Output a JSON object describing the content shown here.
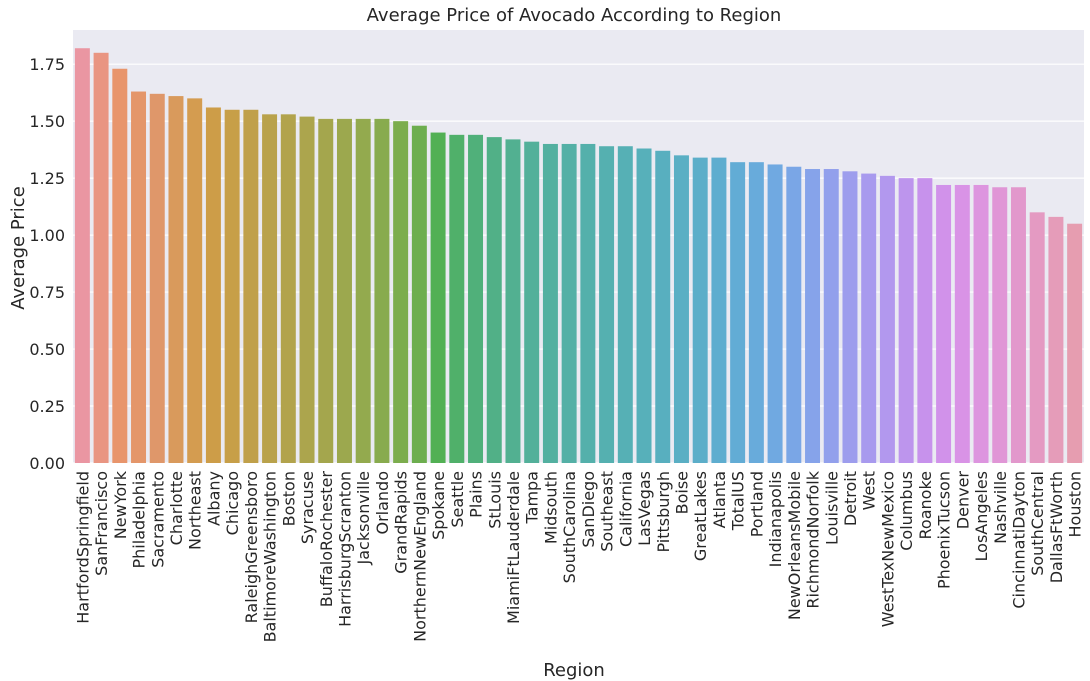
{
  "chart_data": {
    "type": "bar",
    "title": "Average Price of Avocado According to Region",
    "xlabel": "Region",
    "ylabel": "Average Price",
    "ylim": [
      0,
      1.9
    ],
    "yticks": [
      "0.00",
      "0.25",
      "0.50",
      "0.75",
      "1.00",
      "1.25",
      "1.50",
      "1.75"
    ],
    "grid": true,
    "background": "#eaeaf2",
    "gridColor": "#ffffff",
    "categories": [
      "HartfordSpringfield",
      "SanFrancisco",
      "NewYork",
      "Philadelphia",
      "Sacramento",
      "Charlotte",
      "Northeast",
      "Albany",
      "Chicago",
      "RaleighGreensboro",
      "BaltimoreWashington",
      "Boston",
      "Syracuse",
      "BuffaloRochester",
      "HarrisburgScranton",
      "Jacksonville",
      "Orlando",
      "GrandRapids",
      "NorthernNewEngland",
      "Spokane",
      "Seattle",
      "Plains",
      "StLouis",
      "MiamiFtLauderdale",
      "Tampa",
      "Midsouth",
      "SouthCarolina",
      "SanDiego",
      "Southeast",
      "California",
      "LasVegas",
      "Pittsburgh",
      "Boise",
      "GreatLakes",
      "Atlanta",
      "TotalUS",
      "Portland",
      "Indianapolis",
      "NewOrleansMobile",
      "RichmondNorfolk",
      "Louisville",
      "Detroit",
      "West",
      "WestTexNewMexico",
      "Columbus",
      "Roanoke",
      "PhoenixTucson",
      "Denver",
      "LosAngeles",
      "Nashville",
      "CincinnatiDayton",
      "SouthCentral",
      "DallasFtWorth",
      "Houston"
    ],
    "values": [
      1.82,
      1.8,
      1.73,
      1.63,
      1.62,
      1.61,
      1.6,
      1.56,
      1.55,
      1.55,
      1.53,
      1.53,
      1.52,
      1.51,
      1.51,
      1.51,
      1.51,
      1.5,
      1.48,
      1.45,
      1.44,
      1.44,
      1.43,
      1.42,
      1.41,
      1.4,
      1.4,
      1.4,
      1.39,
      1.39,
      1.38,
      1.37,
      1.35,
      1.34,
      1.34,
      1.32,
      1.32,
      1.31,
      1.3,
      1.29,
      1.29,
      1.28,
      1.27,
      1.26,
      1.25,
      1.25,
      1.22,
      1.22,
      1.22,
      1.21,
      1.21,
      1.1,
      1.08,
      1.05
    ],
    "colors": [
      "#ea96a2",
      "#e99582",
      "#e8956c",
      "#e4966a",
      "#df976a",
      "#d99a5c",
      "#d49c50",
      "#cd9d48",
      "#c79f48",
      "#c0a04a",
      "#b9a24b",
      "#b2a34c",
      "#aca54d",
      "#a4a64d",
      "#9ca84e",
      "#93aa4e",
      "#88ab4e",
      "#7cad4e",
      "#6dae4f",
      "#52b054",
      "#50b06a",
      "#50b07a",
      "#51b087",
      "#52b091",
      "#53b09a",
      "#53b0a0",
      "#54b0a6",
      "#54b0ab",
      "#55b0b0",
      "#56b0b5",
      "#57b0ba",
      "#58afbf",
      "#5aafc4",
      "#5caec9",
      "#5eadcf",
      "#62acd5",
      "#68abdb",
      "#70a9e1",
      "#7aa6e6",
      "#86a3ea",
      "#92a0ec",
      "#9d9ded",
      "#a89aee",
      "#b298ee",
      "#bd95ed",
      "#c792ec",
      "#d192ea",
      "#d993e6",
      "#dd95df",
      "#e096d6",
      "#e298cc",
      "#e49ac2",
      "#e59cb9",
      "#e69db0"
    ]
  }
}
